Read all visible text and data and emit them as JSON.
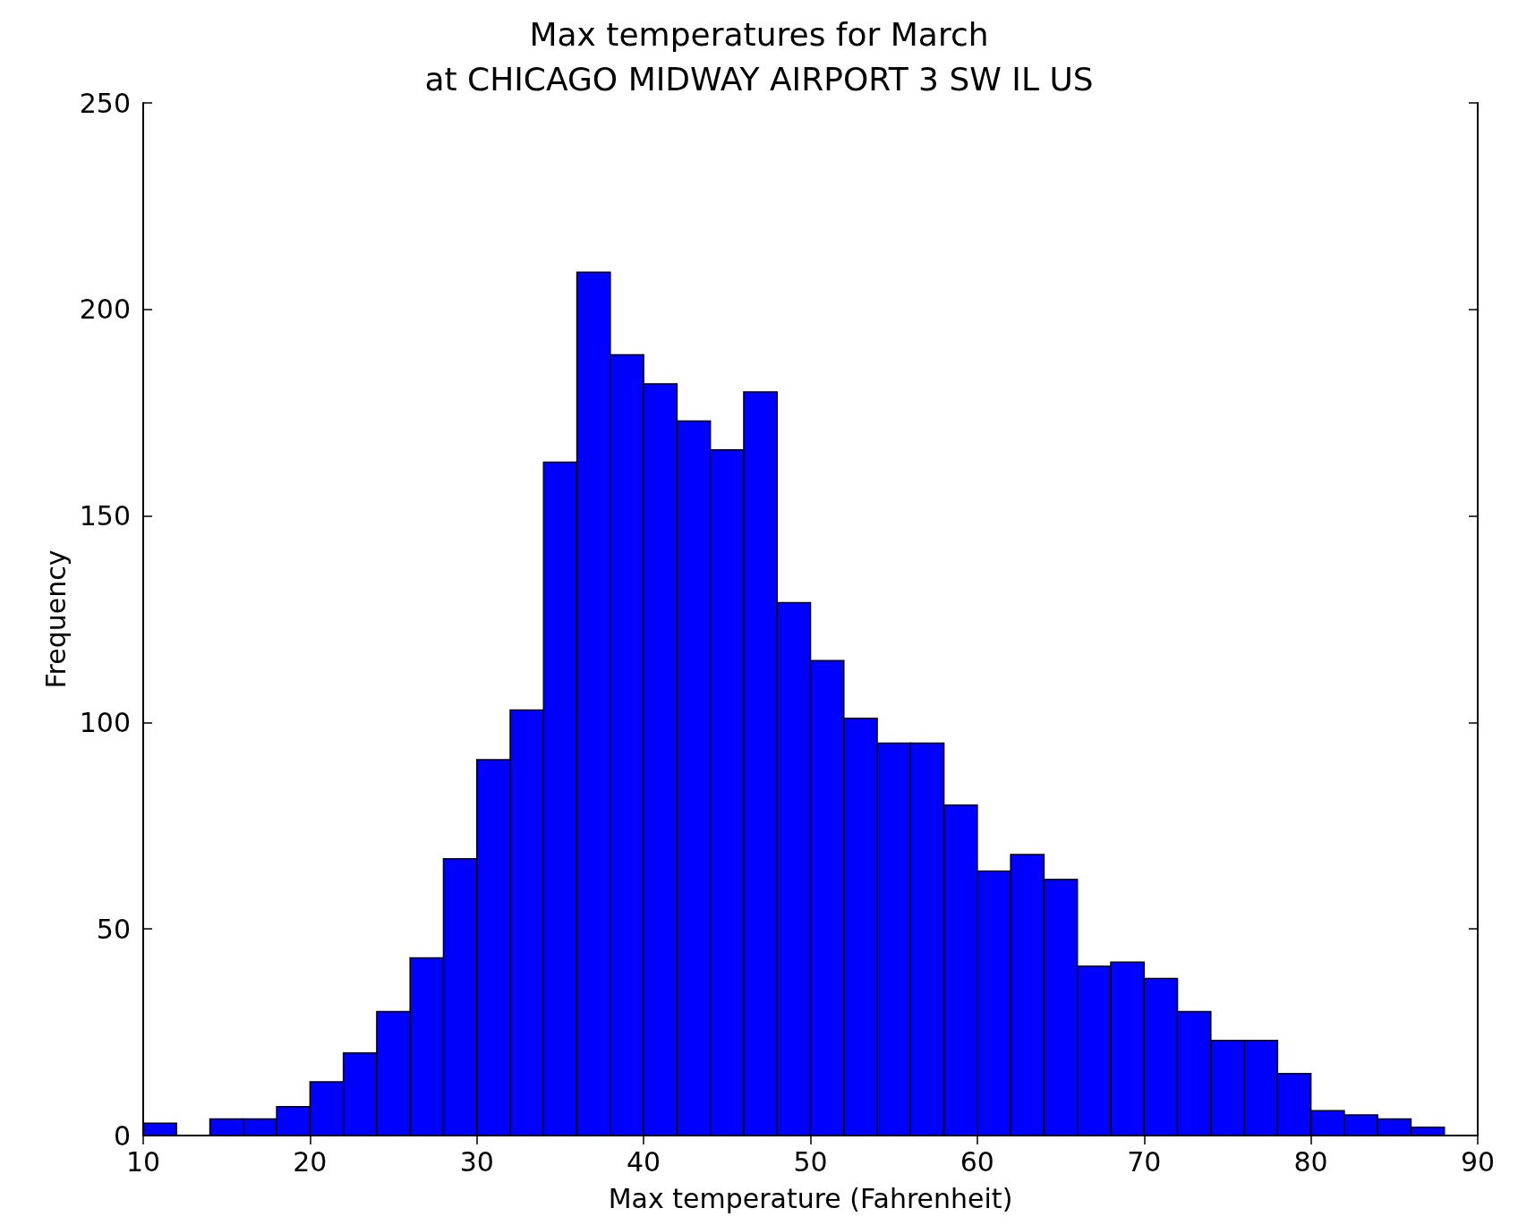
{
  "chart_data": {
    "type": "histogram",
    "title": "Max temperatures for March\nat CHICAGO MIDWAY AIRPORT 3 SW IL US",
    "xlabel": "Max temperature (Fahrenheit)",
    "ylabel": "Frequency",
    "bins": [
      10,
      12,
      14,
      16,
      18,
      20,
      22,
      24,
      26,
      28,
      30,
      32,
      34,
      36,
      38,
      40,
      42,
      44,
      46,
      48,
      50,
      52,
      54,
      56,
      58,
      60,
      62,
      64,
      66,
      68,
      70,
      72,
      74,
      76,
      78,
      80,
      82,
      84,
      86,
      88
    ],
    "values": [
      3,
      0,
      4,
      4,
      7,
      13,
      20,
      30,
      43,
      67,
      91,
      103,
      163,
      209,
      189,
      182,
      173,
      166,
      180,
      129,
      115,
      101,
      95,
      95,
      80,
      64,
      68,
      62,
      41,
      42,
      38,
      30,
      23,
      23,
      15,
      6,
      5,
      4,
      2
    ],
    "color": "#0000ff",
    "xlim": [
      10,
      90
    ],
    "xticks": [
      10,
      20,
      30,
      40,
      50,
      60,
      70,
      80,
      90
    ],
    "ylim": [
      0,
      250
    ],
    "yticks": [
      0,
      50,
      100,
      150,
      200,
      250
    ],
    "grid": false
  }
}
